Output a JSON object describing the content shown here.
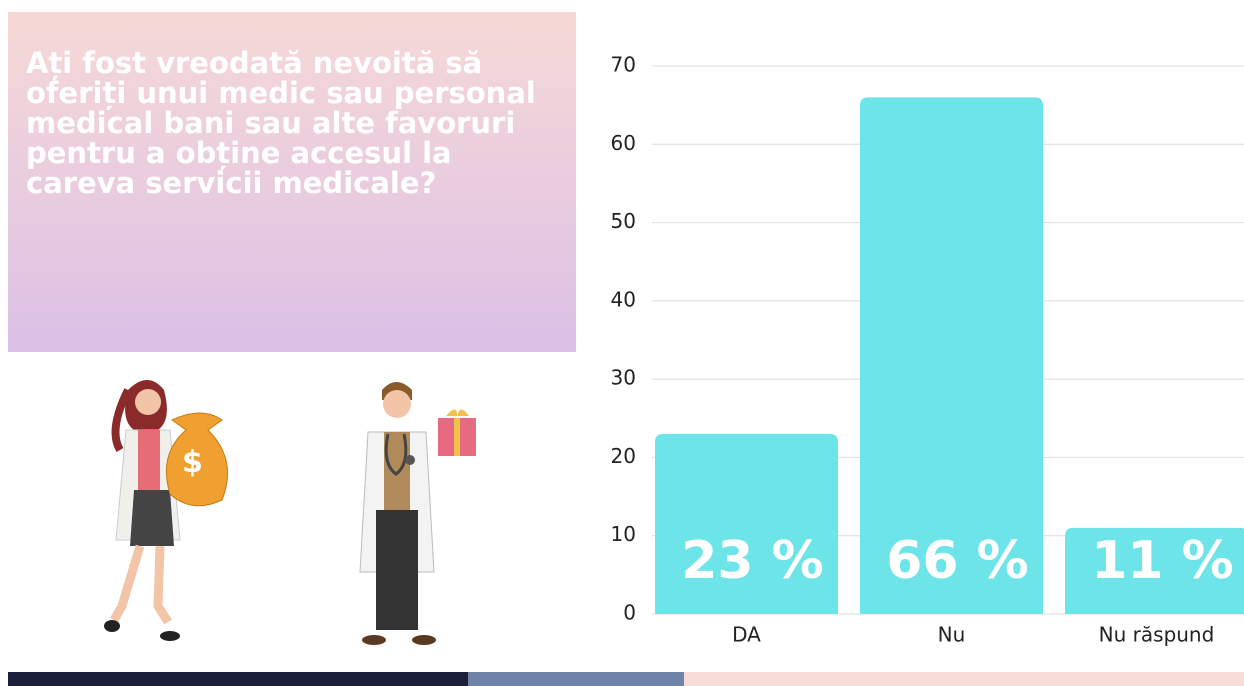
{
  "chart_data": {
    "type": "bar",
    "title": "Ați fost vreodată nevoită să oferiți unui medic sau personal medical bani sau alte favoruri pentru a obține accesul la careva servicii medicale?",
    "categories": [
      "DA",
      "Nu",
      "Nu răspund"
    ],
    "values": [
      23,
      66,
      11
    ],
    "value_labels": [
      "23 %",
      "66 %",
      "11 %"
    ],
    "color": "#6de4e8",
    "ylim": [
      0,
      70
    ],
    "yticks": [
      0,
      10,
      20,
      30,
      40,
      50,
      60,
      70
    ],
    "grid": true
  }
}
